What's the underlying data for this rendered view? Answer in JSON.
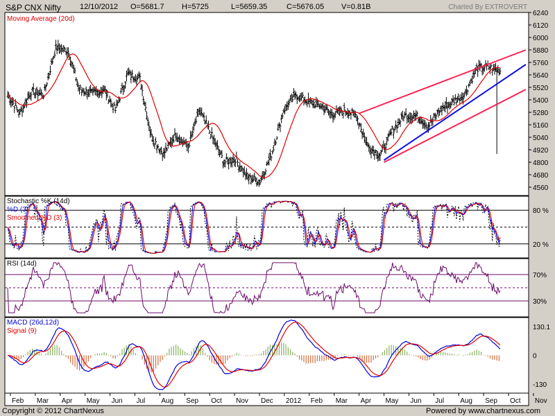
{
  "header": {
    "title": "S&P CNX Nifty",
    "date": "12/10/2012",
    "open": "O=5681.7",
    "high": "H=5725",
    "low": "L=5659.35",
    "close": "C=5676.05",
    "volume": "V=0.81B",
    "credit": "Charted By EXTROVERT"
  },
  "footer": {
    "copyright": "Copyright © 2012 ChartNexus",
    "powered": "Powered by www.chartnexus.com"
  },
  "colors": {
    "background": "#ffffff",
    "frame": "#d4d0c8",
    "price_bar": "#000000",
    "moving_average": "#e00000",
    "trend_red": "#ff2050",
    "trend_blue": "#1010e0",
    "stoch_k": "#1010e0",
    "stoch_d": "#000000",
    "stoch_smoothed": "#e00000",
    "rsi": "#6a0a6a",
    "macd": "#0000dd",
    "signal": "#e00000",
    "hist_pos": "#88b060",
    "hist_neg": "#d07040"
  },
  "chart_data": [
    {
      "type": "bar",
      "panel": "price",
      "title": "S&P CNX Nifty",
      "series_names": [
        "Moving Average (20d)"
      ],
      "ylim": [
        4480,
        6240
      ],
      "yticks": [
        6240,
        6120,
        6000,
        5880,
        5760,
        5640,
        5520,
        5400,
        5280,
        5160,
        5040,
        4920,
        4800,
        4680,
        4560
      ],
      "x_tick_labels": [
        "Feb",
        "Mar",
        "Apr",
        "May",
        "Jun",
        "Jul",
        "Aug",
        "Sep",
        "Oct",
        "Nov",
        "Dec",
        "2012",
        "Feb",
        "Mar",
        "Apr",
        "May",
        "Jun",
        "Jul",
        "Aug",
        "Sep",
        "Oct",
        "Nov"
      ],
      "close_path": [
        [
          "Feb 2011",
          5450
        ],
        [
          "Feb mid",
          5270
        ],
        [
          "Mar 2011",
          5480
        ],
        [
          "Mar mid",
          5450
        ],
        [
          "Apr 2011",
          5900
        ],
        [
          "Apr mid",
          5870
        ],
        [
          "May 2011",
          5500
        ],
        [
          "May mid",
          5460
        ],
        [
          "Jun 2011",
          5500
        ],
        [
          "Jun mid",
          5300
        ],
        [
          "Jul 2011",
          5650
        ],
        [
          "Jul mid",
          5600
        ],
        [
          "Aug 2011",
          5050
        ],
        [
          "Aug mid",
          4880
        ],
        [
          "Sep 2011",
          5070
        ],
        [
          "Sep mid",
          4950
        ],
        [
          "Oct 2011",
          5300
        ],
        [
          "Oct mid",
          5050
        ],
        [
          "Nov 2011",
          4800
        ],
        [
          "Nov mid",
          4830
        ],
        [
          "Dec 2011",
          4650
        ],
        [
          "Dec mid",
          4620
        ],
        [
          "Jan 2012",
          4900
        ],
        [
          "Jan mid",
          5300
        ],
        [
          "Feb 2012",
          5450
        ],
        [
          "Feb mid",
          5380
        ],
        [
          "Mar 2012",
          5350
        ],
        [
          "Mar mid",
          5260
        ],
        [
          "Apr 2012",
          5300
        ],
        [
          "Apr mid",
          5250
        ],
        [
          "May 2012",
          4950
        ],
        [
          "May mid",
          4870
        ],
        [
          "Jun 2012",
          5100
        ],
        [
          "Jun mid",
          5250
        ],
        [
          "Jul 2012",
          5250
        ],
        [
          "Jul mid",
          5150
        ],
        [
          "Aug 2012",
          5300
        ],
        [
          "Aug mid",
          5380
        ],
        [
          "Sep 2012",
          5450
        ],
        [
          "Sep mid",
          5700
        ],
        [
          "Oct 2012",
          5720
        ],
        [
          "Oct 12 2012",
          5676
        ]
      ],
      "trendlines": [
        {
          "color": "trend_red",
          "from": [
            "Apr 2012",
            5270
          ],
          "to": [
            "Oct 2012",
            5880
          ]
        },
        {
          "color": "trend_red",
          "from": [
            "May 2012",
            4800
          ],
          "to": [
            "Oct 2012",
            5500
          ]
        },
        {
          "color": "trend_blue",
          "from": [
            "May 2012",
            4820
          ],
          "to": [
            "Oct 2012",
            5740
          ]
        }
      ]
    },
    {
      "type": "line",
      "panel": "stochastic",
      "series_names": [
        "Stochastic %K (14d)",
        "%D (3)",
        "Smoothed %D (3)"
      ],
      "ylim": [
        0,
        100
      ],
      "ref_lines": [
        80,
        50,
        20
      ],
      "y_tick_labels": [
        "80 %",
        "20 %"
      ]
    },
    {
      "type": "line",
      "panel": "rsi",
      "series_names": [
        "RSI (14d)"
      ],
      "ylim": [
        10,
        90
      ],
      "ref_lines": [
        70,
        50,
        30
      ],
      "y_tick_labels": [
        "70%",
        "30%"
      ]
    },
    {
      "type": "line",
      "panel": "macd",
      "series_names": [
        "MACD (26d,12d)",
        "Signal (9)"
      ],
      "ylim": [
        -170,
        170
      ],
      "y_tick_labels": [
        "130.1",
        "0",
        "-130"
      ]
    }
  ]
}
